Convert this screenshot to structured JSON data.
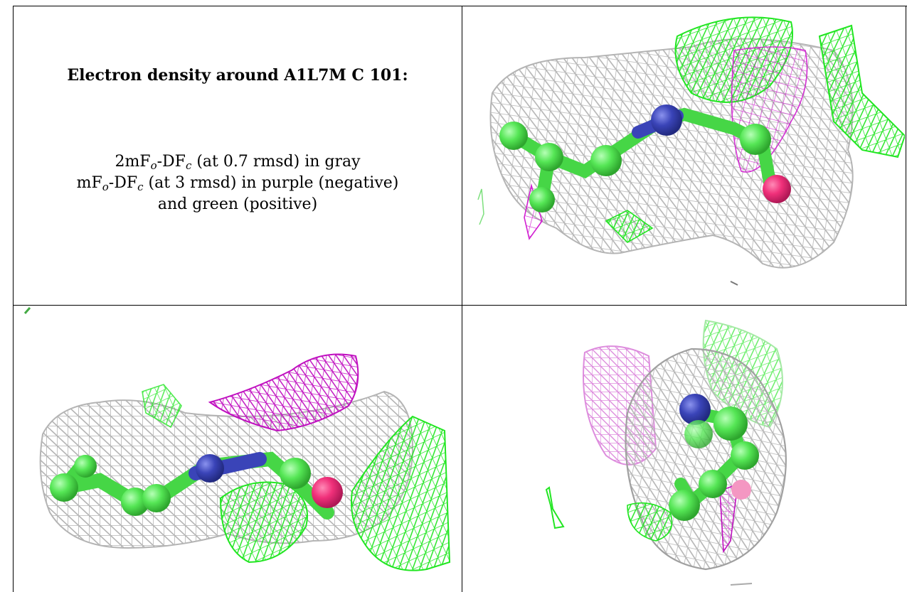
{
  "caption": {
    "title": "Electron density around A1L7M C 101:",
    "line1": {
      "pre": "2mF",
      "sub1": "o",
      "mid": "-DF",
      "sub2": "c",
      "post": " (at 0.7 rmsd) in gray"
    },
    "line2": {
      "pre": "mF",
      "sub1": "o",
      "mid": "-DF",
      "sub2": "c",
      "post": " (at 3 rmsd) in purple (negative)"
    },
    "line3": "and green (positive)"
  },
  "colors": {
    "mesh_gray": "#b4b4b4",
    "mesh_green": "#22e622",
    "mesh_purple": "#d11ed1",
    "carbon": "#55e655",
    "nitrogen": "#3a44b8",
    "oxygen": "#f0307a"
  }
}
